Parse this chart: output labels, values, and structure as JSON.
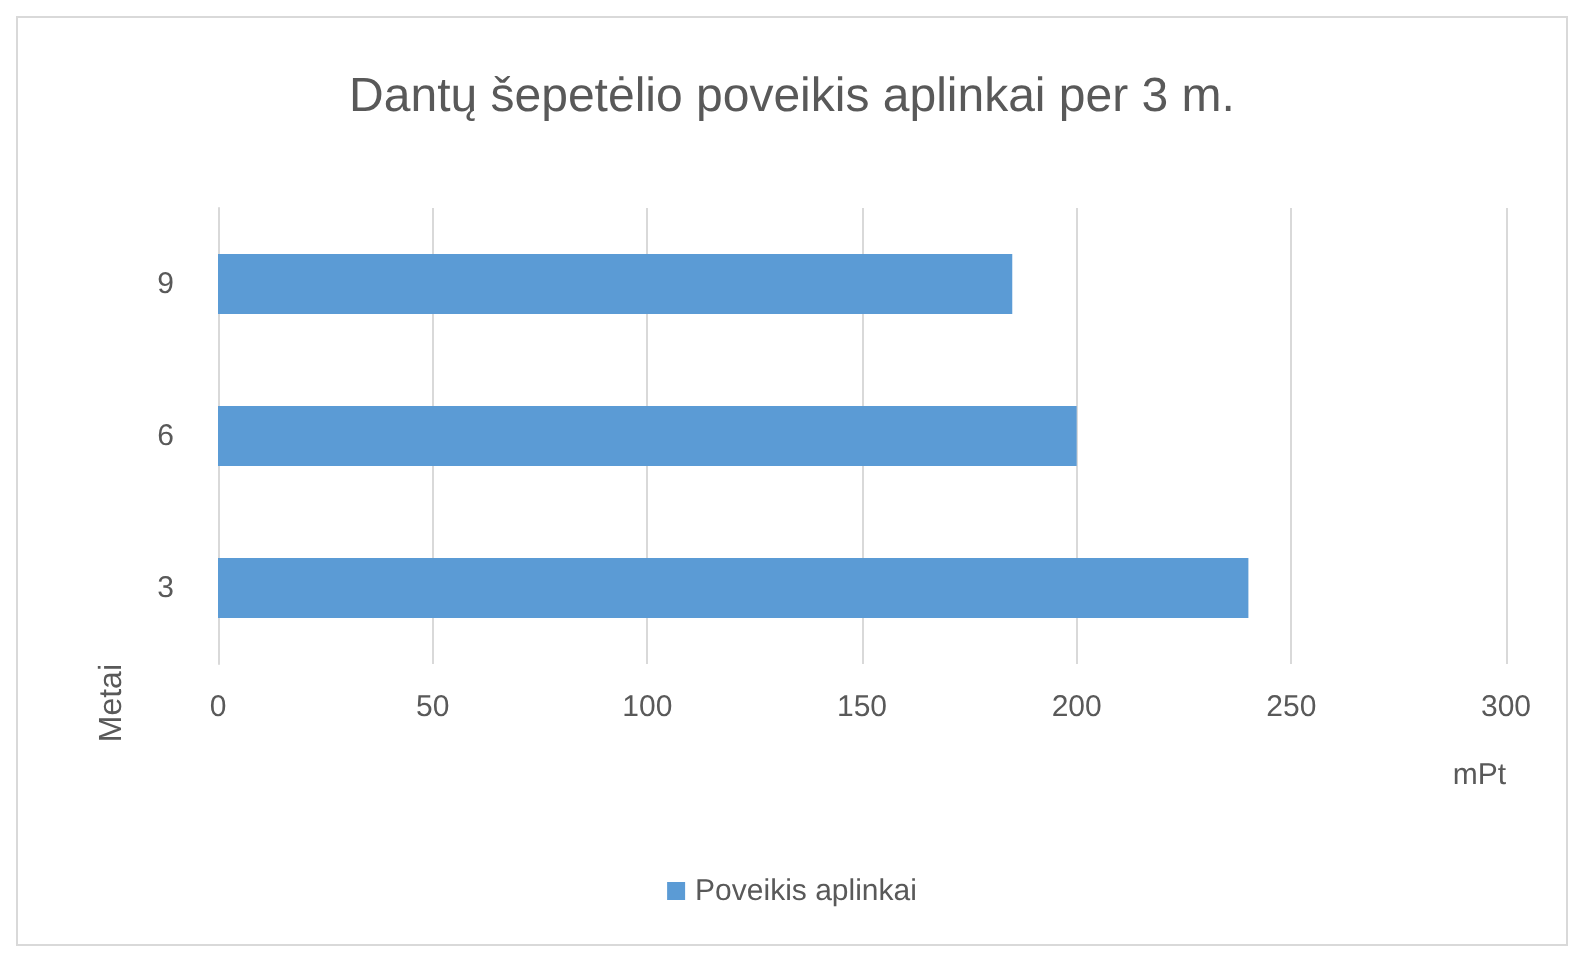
{
  "chart_data": {
    "type": "bar",
    "orientation": "horizontal",
    "title": "Dantų šepetėlio poveikis aplinkai per 3 m.",
    "xlabel": "mPt",
    "ylabel": "Metai",
    "categories": [
      "9",
      "6",
      "3"
    ],
    "series": [
      {
        "name": "Poveikis aplinkai",
        "color": "#5b9bd5",
        "values": [
          185,
          200,
          240
        ]
      }
    ],
    "xlim": [
      0,
      300
    ],
    "xticks": [
      0,
      50,
      100,
      150,
      200,
      250,
      300
    ],
    "grid": "x",
    "legend": "bottom"
  }
}
